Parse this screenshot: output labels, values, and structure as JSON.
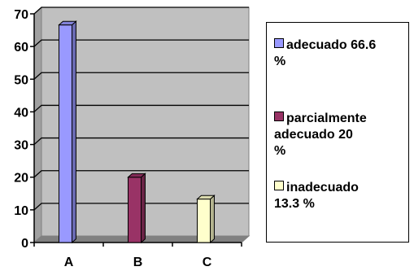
{
  "chart_data": {
    "type": "bar",
    "categories": [
      "A",
      "B",
      "C"
    ],
    "series": [
      {
        "name": "adecuado 66.6 %",
        "category": "A",
        "value": 66.6,
        "color": "#9999ff"
      },
      {
        "name": "parcialmente adecuado 20 %",
        "category": "B",
        "value": 20,
        "color": "#993366"
      },
      {
        "name": "inadecuado 13.3 %",
        "category": "C",
        "value": 13.3,
        "color": "#ffffcc"
      }
    ],
    "y_ticks": [
      "0",
      "10",
      "20",
      "30",
      "40",
      "50",
      "60",
      "70"
    ],
    "ylim": [
      0,
      70
    ],
    "grid": true,
    "wall_color": "#c0c0c0",
    "legend_position": "right",
    "legend": [
      {
        "label": "adecuado 66.6\n%"
      },
      {
        "label": "parcialmente\nadecuado 20\n%"
      },
      {
        "label": "inadecuado\n13.3 %"
      }
    ]
  }
}
